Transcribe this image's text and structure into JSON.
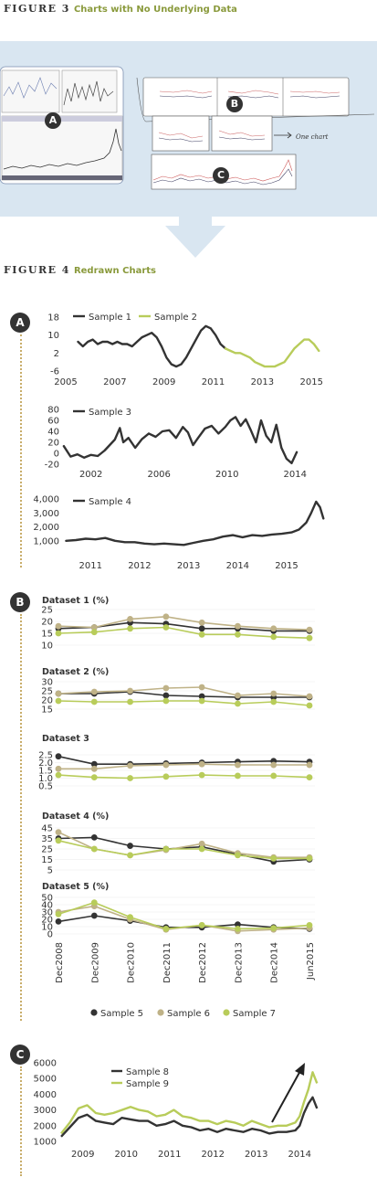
{
  "figure3": {
    "label": "FIGURE 3",
    "title": "Charts with No Underlying Data"
  },
  "figure4": {
    "label": "FIGURE 4",
    "title": "Redrawn Charts"
  },
  "sketch": {
    "badges": [
      "A",
      "B",
      "C"
    ],
    "note": "One chart"
  },
  "section_badges": [
    "A",
    "B",
    "C"
  ],
  "colors": {
    "dark": "#333333",
    "green": "#b8cc5a",
    "tan": "#bfb287",
    "accent_title": "#8a9a3c",
    "panel_bg": "#d9e6f1",
    "dotted": "#c8ad6a"
  },
  "chart_data": [
    {
      "id": "A1",
      "type": "line",
      "xlim": [
        2005,
        2015.4
      ],
      "ylim": [
        -6,
        18
      ],
      "x_ticks": [
        "2005",
        "2007",
        "2009",
        "2011",
        "2013",
        "2015"
      ],
      "y_ticks": [
        "18",
        "10",
        "2",
        "-6"
      ],
      "series": [
        {
          "name": "Sample 1",
          "color": "dark",
          "x": [
            2005.5,
            2005.7,
            2005.9,
            2006.1,
            2006.3,
            2006.5,
            2006.7,
            2006.9,
            2007.1,
            2007.3,
            2007.5,
            2007.7,
            2007.9,
            2008.1,
            2008.3,
            2008.5,
            2008.7,
            2008.9,
            2009.1,
            2009.3,
            2009.5,
            2009.7,
            2009.9,
            2010.1,
            2010.3,
            2010.5,
            2010.7,
            2010.9,
            2011.1,
            2011.3,
            2011.5
          ],
          "y": [
            7,
            5,
            7,
            8,
            6,
            7,
            7,
            6,
            7,
            6,
            6,
            5,
            7,
            9,
            10,
            11,
            9,
            5,
            0,
            -3,
            -4,
            -3,
            0,
            4,
            8,
            12,
            14,
            13,
            10,
            6,
            4
          ]
        },
        {
          "name": "Sample 2",
          "color": "green",
          "x": [
            2011.5,
            2011.7,
            2011.9,
            2012.1,
            2012.3,
            2012.5,
            2012.7,
            2012.9,
            2013.1,
            2013.3,
            2013.5,
            2013.7,
            2013.9,
            2014.1,
            2014.3,
            2014.5,
            2014.7,
            2014.9,
            2015.1,
            2015.3
          ],
          "y": [
            4,
            3,
            2,
            2,
            1,
            0,
            -2,
            -3,
            -4,
            -4,
            -4,
            -3,
            -2,
            1,
            4,
            6,
            8,
            8,
            6,
            3
          ]
        }
      ]
    },
    {
      "id": "A2",
      "type": "line",
      "xlim": [
        2000.3,
        2014.9
      ],
      "ylim": [
        -20,
        80
      ],
      "x_ticks": [
        "2002",
        "2006",
        "2010",
        "2014"
      ],
      "y_ticks": [
        "80",
        "60",
        "40",
        "20",
        "0",
        "-20"
      ],
      "series": [
        {
          "name": "Sample 3",
          "color": "dark",
          "x": [
            2000.4,
            2000.8,
            2001.2,
            2001.6,
            2002.0,
            2002.4,
            2002.8,
            2003.1,
            2003.4,
            2003.7,
            2003.9,
            2004.2,
            2004.6,
            2005.0,
            2005.4,
            2005.8,
            2006.2,
            2006.6,
            2007.0,
            2007.4,
            2007.7,
            2008.0,
            2008.3,
            2008.7,
            2009.1,
            2009.5,
            2009.9,
            2010.2,
            2010.5,
            2010.8,
            2011.1,
            2011.4,
            2011.7,
            2012.0,
            2012.3,
            2012.6,
            2012.9,
            2013.2,
            2013.5,
            2013.8,
            2014.1
          ],
          "y": [
            13,
            -6,
            -2,
            -8,
            -3,
            -5,
            5,
            15,
            25,
            46,
            20,
            28,
            10,
            26,
            36,
            30,
            40,
            42,
            28,
            48,
            38,
            15,
            28,
            45,
            50,
            36,
            48,
            60,
            66,
            50,
            62,
            42,
            20,
            60,
            32,
            20,
            52,
            10,
            -10,
            -18,
            2
          ]
        }
      ]
    },
    {
      "id": "A3",
      "type": "line",
      "xlim": [
        2010.4,
        2015.8
      ],
      "ylim": [
        0,
        4000
      ],
      "x_ticks": [
        "2011",
        "2012",
        "2013",
        "2014",
        "2015"
      ],
      "y_ticks": [
        "4,000",
        "3,000",
        "2,000",
        "1,000"
      ],
      "series": [
        {
          "name": "Sample 4",
          "color": "dark",
          "x": [
            2010.5,
            2010.7,
            2010.9,
            2011.1,
            2011.3,
            2011.5,
            2011.7,
            2011.9,
            2012.1,
            2012.3,
            2012.5,
            2012.7,
            2012.9,
            2013.1,
            2013.3,
            2013.5,
            2013.7,
            2013.9,
            2014.1,
            2014.3,
            2014.5,
            2014.7,
            2014.9,
            2015.1,
            2015.25,
            2015.4,
            2015.5,
            2015.6,
            2015.68,
            2015.75
          ],
          "y": [
            1000,
            1050,
            1150,
            1100,
            1200,
            1000,
            900,
            900,
            800,
            750,
            800,
            750,
            700,
            850,
            1000,
            1100,
            1300,
            1400,
            1250,
            1400,
            1350,
            1450,
            1500,
            1600,
            1800,
            2300,
            3000,
            3800,
            3400,
            2600
          ]
        }
      ]
    },
    {
      "id": "B",
      "type": "line",
      "categories": [
        "Dec2008",
        "Dec2009",
        "Dec2010",
        "Dec2011",
        "Dec2012",
        "Dec2013",
        "Dec2014",
        "Jun2015"
      ],
      "legend": [
        {
          "name": "Sample 5",
          "color": "dark"
        },
        {
          "name": "Sample 6",
          "color": "tan"
        },
        {
          "name": "Sample 7",
          "color": "green"
        }
      ],
      "panels": [
        {
          "title": "Dataset 1 (%)",
          "ylim": [
            10,
            25
          ],
          "y_ticks": [
            "25",
            "20",
            "15",
            "10"
          ],
          "series": [
            {
              "color": "dark",
              "values": [
                17,
                17.5,
                19.5,
                19,
                17,
                17,
                16,
                16
              ]
            },
            {
              "color": "tan",
              "values": [
                18,
                17.5,
                21,
                22,
                19.5,
                18,
                17,
                16.5
              ]
            },
            {
              "color": "green",
              "values": [
                15,
                15.5,
                17,
                17.5,
                14.5,
                14.5,
                13.5,
                13
              ]
            }
          ]
        },
        {
          "title": "Dataset 2 (%)",
          "ylim": [
            15,
            30
          ],
          "y_ticks": [
            "30",
            "25",
            "20",
            "15"
          ],
          "series": [
            {
              "color": "dark",
              "values": [
                23.5,
                23.5,
                24.5,
                22.5,
                22,
                21.5,
                21.5,
                21.5
              ]
            },
            {
              "color": "tan",
              "values": [
                23.5,
                24.5,
                25,
                26.5,
                27,
                22.5,
                23.5,
                22
              ]
            },
            {
              "color": "green",
              "values": [
                19.5,
                19,
                19,
                19.5,
                19.5,
                18,
                19,
                17
              ]
            }
          ]
        },
        {
          "title": "Dataset 3",
          "ylim": [
            0.5,
            2.5
          ],
          "y_ticks": [
            "2.5",
            "2.0",
            "1.5",
            "1.0",
            "0.5"
          ],
          "series": [
            {
              "color": "dark",
              "values": [
                2.4,
                1.9,
                1.9,
                1.95,
                2.0,
                2.05,
                2.1,
                2.05
              ]
            },
            {
              "color": "tan",
              "values": [
                1.6,
                1.6,
                1.8,
                1.85,
                1.9,
                1.85,
                1.85,
                1.85
              ]
            },
            {
              "color": "green",
              "values": [
                1.2,
                1.05,
                1.0,
                1.1,
                1.2,
                1.15,
                1.15,
                1.05
              ]
            }
          ]
        },
        {
          "title": "Dataset 4 (%)",
          "ylim": [
            5,
            45
          ],
          "y_ticks": [
            "45",
            "35",
            "25",
            "15",
            "5"
          ],
          "series": [
            {
              "color": "dark",
              "values": [
                35,
                36,
                28,
                25,
                27,
                20,
                13,
                15
              ]
            },
            {
              "color": "tan",
              "values": [
                41,
                25,
                19,
                24,
                30,
                21,
                17,
                17
              ]
            },
            {
              "color": "green",
              "values": [
                33,
                25,
                19,
                25,
                25,
                19,
                16,
                16
              ]
            }
          ]
        },
        {
          "title": "Dataset 5 (%)",
          "ylim": [
            0,
            50
          ],
          "y_ticks": [
            "50",
            "40",
            "30",
            "20",
            "10",
            "0"
          ],
          "series": [
            {
              "color": "dark",
              "values": [
                17,
                25,
                18,
                9,
                9,
                13,
                9,
                7
              ]
            },
            {
              "color": "tan",
              "values": [
                30,
                38,
                20,
                6,
                12,
                4,
                6,
                8
              ]
            },
            {
              "color": "green",
              "values": [
                27,
                43,
                23,
                7,
                12,
                7,
                8,
                12
              ]
            }
          ]
        }
      ]
    },
    {
      "id": "C",
      "type": "line",
      "xlim": [
        2008.5,
        2014.5
      ],
      "ylim": [
        1000,
        6000
      ],
      "x_ticks": [
        "2009",
        "2010",
        "2011",
        "2012",
        "2013",
        "2014"
      ],
      "y_ticks": [
        "6000",
        "5000",
        "4000",
        "3000",
        "2000",
        "1000"
      ],
      "series": [
        {
          "name": "Sample 8",
          "color": "dark",
          "x": [
            2008.5,
            2008.7,
            2008.9,
            2009.1,
            2009.3,
            2009.5,
            2009.7,
            2009.9,
            2010.1,
            2010.3,
            2010.5,
            2010.7,
            2010.9,
            2011.1,
            2011.3,
            2011.5,
            2011.7,
            2011.9,
            2012.1,
            2012.3,
            2012.5,
            2012.7,
            2012.9,
            2013.1,
            2013.3,
            2013.5,
            2013.7,
            2013.9,
            2014.0,
            2014.1,
            2014.2,
            2014.3,
            2014.4
          ],
          "y": [
            1300,
            1900,
            2500,
            2700,
            2300,
            2200,
            2100,
            2500,
            2400,
            2300,
            2300,
            2000,
            2100,
            2300,
            2000,
            1900,
            1700,
            1800,
            1600,
            1800,
            1700,
            1600,
            1800,
            1700,
            1500,
            1600,
            1600,
            1700,
            2000,
            2800,
            3400,
            3800,
            3100
          ]
        },
        {
          "name": "Sample 9",
          "color": "green",
          "x": [
            2008.5,
            2008.7,
            2008.9,
            2009.1,
            2009.3,
            2009.5,
            2009.7,
            2009.9,
            2010.1,
            2010.3,
            2010.5,
            2010.7,
            2010.9,
            2011.1,
            2011.3,
            2011.5,
            2011.7,
            2011.9,
            2012.1,
            2012.3,
            2012.5,
            2012.7,
            2012.9,
            2013.1,
            2013.3,
            2013.5,
            2013.7,
            2013.9,
            2014.0,
            2014.1,
            2014.2,
            2014.3,
            2014.4
          ],
          "y": [
            1500,
            2200,
            3100,
            3300,
            2800,
            2700,
            2800,
            3000,
            3200,
            3000,
            2900,
            2600,
            2700,
            3000,
            2600,
            2500,
            2300,
            2300,
            2100,
            2300,
            2200,
            2000,
            2300,
            2100,
            1900,
            2000,
            2000,
            2200,
            2600,
            3500,
            4300,
            5400,
            4700
          ]
        }
      ]
    }
  ]
}
